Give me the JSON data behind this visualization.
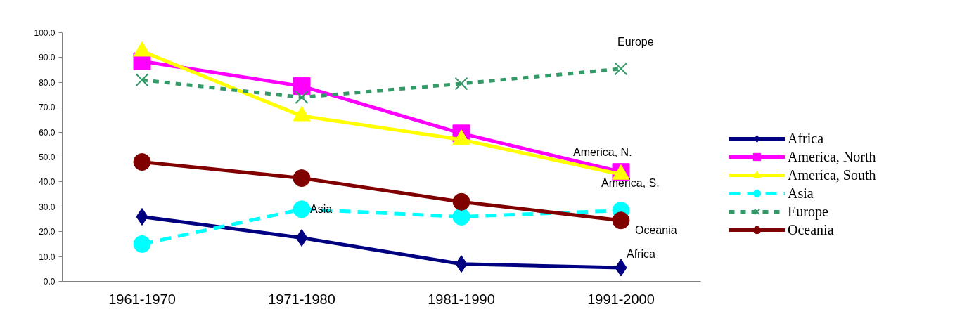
{
  "chart_data": {
    "type": "line",
    "categories": [
      "1961-1970",
      "1971-1980",
      "1981-1990",
      "1991-2000"
    ],
    "ylim": [
      0,
      100
    ],
    "yticks": [
      {
        "value": 0,
        "label": "0.0"
      },
      {
        "value": 10,
        "label": "10.0"
      },
      {
        "value": 20,
        "label": "20.0"
      },
      {
        "value": 30,
        "label": "30.0"
      },
      {
        "value": 40,
        "label": "40.0"
      },
      {
        "value": 50,
        "label": "50.0"
      },
      {
        "value": 60,
        "label": "60.0"
      },
      {
        "value": 70,
        "label": "70.0"
      },
      {
        "value": 80,
        "label": "80.0"
      },
      {
        "value": 90,
        "label": "90.0"
      },
      {
        "value": 100,
        "label": "100.0"
      }
    ],
    "grid": false,
    "legend": "right",
    "series": [
      {
        "name": "Africa",
        "color": "#000080",
        "marker": "diamond",
        "line_style": "solid",
        "values": [
          26,
          17.5,
          7,
          5.5
        ]
      },
      {
        "name": "America, North",
        "color": "#ff00ff",
        "marker": "square",
        "line_style": "solid",
        "values": [
          88.5,
          78.5,
          59.5,
          44
        ]
      },
      {
        "name": "America, South",
        "color": "#ffff00",
        "marker": "triangle",
        "line_style": "solid",
        "values": [
          92.5,
          66.5,
          57,
          43
        ]
      },
      {
        "name": "Asia",
        "color": "#00ffff",
        "marker": "circle",
        "line_style": "dashed",
        "values": [
          15,
          29,
          26,
          28.5
        ]
      },
      {
        "name": "Europe",
        "color": "#339966",
        "marker": "cross",
        "line_style": "dotted",
        "values": [
          81,
          74,
          79.5,
          85.5
        ]
      },
      {
        "name": "Oceania",
        "color": "#800000",
        "marker": "circle",
        "line_style": "solid",
        "values": [
          48,
          41.5,
          32,
          24.5
        ]
      }
    ],
    "annotations": [
      {
        "text": "Europe",
        "x": "1991-2000",
        "y": 85.5
      },
      {
        "text": "America, N.",
        "x": "1991-2000",
        "y": 44
      },
      {
        "text": "America, S.",
        "x": "1991-2000",
        "y": 43
      },
      {
        "text": "Asia",
        "x": "1971-1980",
        "y": 29
      },
      {
        "text": "Oceania",
        "x": "1991-2000",
        "y": 24.5
      },
      {
        "text": "Africa",
        "x": "1991-2000",
        "y": 5.5
      }
    ]
  }
}
